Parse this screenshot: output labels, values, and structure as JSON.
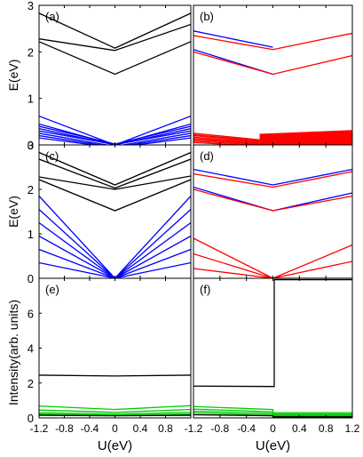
{
  "chart_data": [
    {
      "type": "line",
      "panel": "(a)",
      "xlim": [
        -1.2,
        1.2
      ],
      "ylim": [
        0,
        3
      ],
      "yticks": [
        "0",
        "1",
        "2",
        "3"
      ],
      "ylabel": "E(eV)",
      "series": [
        {
          "color": "#000000",
          "x": [
            -1.2,
            0,
            1.2
          ],
          "y": [
            2.83,
            2.08,
            2.83
          ]
        },
        {
          "color": "#000000",
          "x": [
            -1.2,
            0,
            1.2
          ],
          "y": [
            2.28,
            2.03,
            2.59
          ]
        },
        {
          "color": "#000000",
          "x": [
            -1.2,
            0,
            1.2
          ],
          "y": [
            2.22,
            1.52,
            2.22
          ]
        },
        {
          "color": "#0000ff",
          "x": [
            -1.2,
            0,
            1.2
          ],
          "y": [
            0.62,
            0.0,
            0.62
          ]
        },
        {
          "color": "#0000ff",
          "x": [
            -1.2,
            0,
            1.2
          ],
          "y": [
            0.45,
            0.0,
            0.45
          ]
        },
        {
          "color": "#0000ff",
          "x": [
            -1.2,
            0,
            1.2
          ],
          "y": [
            0.4,
            0.02,
            0.4
          ]
        },
        {
          "color": "#0000ff",
          "x": [
            -1.2,
            0,
            1.2
          ],
          "y": [
            0.35,
            0.0,
            0.35
          ]
        },
        {
          "color": "#0000ff",
          "x": [
            -1.2,
            0,
            1.2
          ],
          "y": [
            0.3,
            0.01,
            0.3
          ]
        },
        {
          "color": "#0000ff",
          "x": [
            -1.2,
            0,
            1.2
          ],
          "y": [
            0.25,
            -0.03,
            0.25
          ]
        },
        {
          "color": "#0000ff",
          "x": [
            -1.2,
            0,
            1.2
          ],
          "y": [
            0.2,
            -0.05,
            0.2
          ]
        },
        {
          "color": "#0000ff",
          "x": [
            -1.2,
            0,
            1.2
          ],
          "y": [
            0.15,
            -0.06,
            0.15
          ]
        }
      ]
    },
    {
      "type": "line",
      "panel": "(b)",
      "xlim": [
        -1.2,
        1.2
      ],
      "ylim": [
        0,
        3
      ],
      "series": [
        {
          "color": "#0000ff",
          "x": [
            -1.2,
            0
          ],
          "y": [
            2.45,
            2.1
          ]
        },
        {
          "color": "#ff0000",
          "x": [
            -1.2,
            0,
            1.2
          ],
          "y": [
            2.35,
            2.05,
            2.4
          ]
        },
        {
          "color": "#0000ff",
          "x": [
            -1.2,
            0
          ],
          "y": [
            2.05,
            1.52
          ]
        },
        {
          "color": "#ff0000",
          "x": [
            -1.2,
            0,
            1.2
          ],
          "y": [
            2.0,
            1.52,
            1.92
          ]
        },
        {
          "color": "#ff0000",
          "x": [
            -1.2,
            -0.2
          ],
          "y": [
            0.2,
            0.07
          ]
        },
        {
          "color": "#ff0000",
          "x": [
            -1.2,
            -0.2
          ],
          "y": [
            0.17,
            0.05
          ]
        },
        {
          "color": "#ff0000",
          "x": [
            -1.2,
            -0.2
          ],
          "y": [
            0.14,
            0.03
          ]
        },
        {
          "color": "#ff0000",
          "x": [
            -1.2,
            -0.2
          ],
          "y": [
            0.11,
            0.02
          ]
        },
        {
          "color": "#ff0000",
          "x": [
            -1.2,
            -0.2
          ],
          "y": [
            0.08,
            0.0
          ]
        },
        {
          "color": "#ff0000",
          "x": [
            -1.2,
            -0.2
          ],
          "y": [
            0.05,
            -0.02
          ]
        },
        {
          "color": "#ff0000",
          "x": [
            -1.2,
            -0.2
          ],
          "y": [
            0.22,
            0.09
          ]
        },
        {
          "color": "#ff0000",
          "x": [
            -1.2,
            -0.2
          ],
          "y": [
            0.25,
            0.11
          ]
        }
      ],
      "bands": [
        {
          "color": "#ff0000",
          "x": [
            -0.2,
            1.2
          ],
          "y_low": [
            -0.15,
            -0.12
          ],
          "y_high": [
            0.24,
            0.32
          ]
        }
      ]
    },
    {
      "type": "line",
      "panel": "(c)",
      "xlim": [
        -1.2,
        1.2
      ],
      "ylim": [
        0,
        3
      ],
      "yticks": [
        "0",
        "1",
        "2",
        "3"
      ],
      "ylabel": "E(eV)",
      "series": [
        {
          "color": "#000000",
          "x": [
            -1.2,
            0,
            1.2
          ],
          "y": [
            2.83,
            2.1,
            2.83
          ]
        },
        {
          "color": "#000000",
          "x": [
            -1.2,
            0,
            1.2
          ],
          "y": [
            2.68,
            2.03,
            2.68
          ]
        },
        {
          "color": "#000000",
          "x": [
            -1.2,
            0,
            1.2
          ],
          "y": [
            2.28,
            2.0,
            2.3
          ]
        },
        {
          "color": "#000000",
          "x": [
            -1.2,
            0,
            1.2
          ],
          "y": [
            2.22,
            1.52,
            2.22
          ]
        },
        {
          "color": "#0000ff",
          "x": [
            -1.2,
            0,
            1.2
          ],
          "y": [
            1.85,
            0.0,
            1.85
          ]
        },
        {
          "color": "#0000ff",
          "x": [
            -1.2,
            0,
            1.2
          ],
          "y": [
            1.55,
            0.0,
            1.55
          ]
        },
        {
          "color": "#0000ff",
          "x": [
            -1.2,
            0,
            1.2
          ],
          "y": [
            1.25,
            0.0,
            1.25
          ]
        },
        {
          "color": "#0000ff",
          "x": [
            -1.2,
            0,
            1.2
          ],
          "y": [
            0.95,
            0.0,
            0.95
          ]
        },
        {
          "color": "#0000ff",
          "x": [
            -1.2,
            0,
            1.2
          ],
          "y": [
            0.65,
            0.0,
            0.65
          ]
        },
        {
          "color": "#0000ff",
          "x": [
            -1.2,
            0,
            1.2
          ],
          "y": [
            0.35,
            0.0,
            0.35
          ]
        }
      ]
    },
    {
      "type": "line",
      "panel": "(d)",
      "xlim": [
        -1.2,
        1.2
      ],
      "ylim": [
        0,
        3
      ],
      "series": [
        {
          "color": "#0000ff",
          "x": [
            -1.2,
            0,
            1.2
          ],
          "y": [
            2.45,
            2.1,
            2.45
          ]
        },
        {
          "color": "#ff0000",
          "x": [
            -1.2,
            0,
            1.2
          ],
          "y": [
            2.35,
            2.05,
            2.4
          ]
        },
        {
          "color": "#0000ff",
          "x": [
            -1.2,
            0,
            1.2
          ],
          "y": [
            2.05,
            1.52,
            1.92
          ]
        },
        {
          "color": "#ff0000",
          "x": [
            -1.2,
            0,
            1.2
          ],
          "y": [
            2.0,
            1.52,
            1.85
          ]
        },
        {
          "color": "#ff0000",
          "x": [
            -1.2,
            0,
            1.2
          ],
          "y": [
            0.9,
            0.0,
            0.75
          ]
        },
        {
          "color": "#ff0000",
          "x": [
            -1.2,
            0,
            1.2
          ],
          "y": [
            0.55,
            0.0,
            0.38
          ]
        },
        {
          "color": "#ff0000",
          "x": [
            -1.2,
            0,
            1.2
          ],
          "y": [
            0.22,
            0.0,
            0.0
          ]
        }
      ]
    },
    {
      "type": "line",
      "panel": "(e)",
      "xlim": [
        -1.2,
        1.2
      ],
      "ylim": [
        0,
        8
      ],
      "yticks": [
        "0",
        "2",
        "4",
        "6"
      ],
      "ylabel": "Intensity(arb. units)",
      "xticks": [
        "-1.2",
        "-0.8",
        "-0.4",
        "0",
        "0.4",
        "0.8"
      ],
      "xlabel": "U(eV)",
      "series": [
        {
          "color": "#000000",
          "x": [
            -1.2,
            0,
            1.2
          ],
          "y": [
            2.45,
            2.4,
            2.45
          ]
        },
        {
          "color": "#00cc00",
          "x": [
            -1.2,
            0,
            1.2
          ],
          "y": [
            0.68,
            0.48,
            0.7
          ]
        },
        {
          "color": "#00cc00",
          "x": [
            -1.2,
            0,
            1.2
          ],
          "y": [
            0.45,
            0.32,
            0.48
          ]
        },
        {
          "color": "#00cc00",
          "x": [
            -1.2,
            0,
            1.2
          ],
          "y": [
            0.3,
            0.22,
            0.32
          ]
        },
        {
          "color": "#00cc00",
          "x": [
            -1.2,
            0,
            1.2
          ],
          "y": [
            0.22,
            0.15,
            0.22
          ]
        },
        {
          "color": "#000000",
          "x": [
            -1.2,
            0,
            1.2
          ],
          "y": [
            0.15,
            0.12,
            0.15
          ]
        }
      ]
    },
    {
      "type": "line",
      "panel": "(f)",
      "xlim": [
        -1.2,
        1.2
      ],
      "ylim": [
        0,
        8
      ],
      "xticks": [
        "-1.2",
        "-0.8",
        "-0.4",
        "0",
        "0.4",
        "0.8",
        "1.2"
      ],
      "xlabel": "U(eV)",
      "series": [
        {
          "color": "#000000",
          "x": [
            -1.2,
            -0.02,
            -0.02,
            0.02,
            0.02,
            1.2
          ],
          "y": [
            1.82,
            1.8,
            1.8,
            1.8,
            7.92,
            7.92
          ]
        },
        {
          "color": "#00cc00",
          "x": [
            -1.2,
            0,
            0,
            1.2
          ],
          "y": [
            0.65,
            0.48,
            0.3,
            0.3
          ]
        },
        {
          "color": "#00cc00",
          "x": [
            -1.2,
            0,
            0,
            1.2
          ],
          "y": [
            0.5,
            0.35,
            0.22,
            0.22
          ]
        },
        {
          "color": "#00cc00",
          "x": [
            -1.2,
            0,
            0,
            1.2
          ],
          "y": [
            0.38,
            0.26,
            0.15,
            0.15
          ]
        },
        {
          "color": "#00cc00",
          "x": [
            -1.2,
            0,
            0,
            1.2
          ],
          "y": [
            0.28,
            0.18,
            0.1,
            0.1
          ]
        },
        {
          "color": "#000000",
          "x": [
            -1.2,
            0,
            0,
            1.2
          ],
          "y": [
            0.18,
            0.12,
            0.06,
            0.06
          ]
        }
      ]
    }
  ]
}
